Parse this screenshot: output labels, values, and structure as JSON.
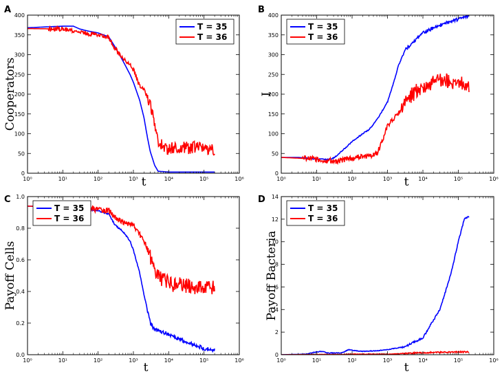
{
  "chart_data": [
    {
      "panel": "A",
      "type": "line",
      "xscale": "log",
      "xlim": [
        1,
        1000000
      ],
      "ylim": [
        0,
        400
      ],
      "xlabel": "t",
      "ylabel": "Cooperators",
      "xticks": [
        "10⁰",
        "10¹",
        "10²",
        "10³",
        "10⁴",
        "10⁵",
        "10⁶"
      ],
      "yticks": [
        "0",
        "50",
        "100",
        "150",
        "200",
        "250",
        "300",
        "350",
        "400"
      ],
      "legend_position": "top-right",
      "series": [
        {
          "name": "T = 35",
          "color": "#0000ff",
          "noise": 0,
          "points": [
            [
              1,
              368
            ],
            [
              3,
              370
            ],
            [
              10,
              372
            ],
            [
              20,
              372
            ],
            [
              30,
              365
            ],
            [
              50,
              360
            ],
            [
              100,
              355
            ],
            [
              200,
              345
            ],
            [
              300,
              320
            ],
            [
              500,
              285
            ],
            [
              800,
              250
            ],
            [
              1000,
              230
            ],
            [
              1500,
              185
            ],
            [
              2000,
              140
            ],
            [
              2500,
              90
            ],
            [
              3000,
              55
            ],
            [
              4000,
              20
            ],
            [
              5000,
              5
            ],
            [
              10000,
              3
            ],
            [
              100000,
              3
            ],
            [
              200000,
              3
            ]
          ]
        },
        {
          "name": "T = 36",
          "color": "#ff0000",
          "noise": 16,
          "points": [
            [
              1,
              366
            ],
            [
              10,
              365
            ],
            [
              30,
              358
            ],
            [
              50,
              353
            ],
            [
              100,
              352
            ],
            [
              150,
              348
            ],
            [
              200,
              342
            ],
            [
              300,
              318
            ],
            [
              500,
              290
            ],
            [
              700,
              280
            ],
            [
              1000,
              262
            ],
            [
              1500,
              220
            ],
            [
              2000,
              210
            ],
            [
              3000,
              180
            ],
            [
              4000,
              120
            ],
            [
              5000,
              85
            ],
            [
              7000,
              65
            ],
            [
              10000,
              62
            ],
            [
              50000,
              65
            ],
            [
              200000,
              62
            ]
          ]
        }
      ]
    },
    {
      "panel": "B",
      "type": "line",
      "xscale": "log",
      "xlim": [
        1,
        1000000
      ],
      "ylim": [
        0,
        400
      ],
      "xlabel": "t",
      "ylabel": "I",
      "xticks": [
        "10⁰",
        "10¹",
        "10²",
        "10³",
        "10⁴",
        "10⁵",
        "10⁶"
      ],
      "yticks": [
        "0",
        "50",
        "100",
        "150",
        "200",
        "250",
        "300",
        "350",
        "400"
      ],
      "legend_position": "top-left",
      "series": [
        {
          "name": "T = 35",
          "color": "#0000ff",
          "noise": 4,
          "points": [
            [
              1,
              40
            ],
            [
              3,
              40
            ],
            [
              10,
              36
            ],
            [
              20,
              35
            ],
            [
              30,
              38
            ],
            [
              50,
              55
            ],
            [
              100,
              80
            ],
            [
              200,
              100
            ],
            [
              300,
              110
            ],
            [
              500,
              135
            ],
            [
              1000,
              180
            ],
            [
              1500,
              230
            ],
            [
              2000,
              270
            ],
            [
              3000,
              310
            ],
            [
              5000,
              330
            ],
            [
              10000,
              355
            ],
            [
              30000,
              375
            ],
            [
              100000,
              390
            ],
            [
              200000,
              398
            ]
          ]
        },
        {
          "name": "T = 36",
          "color": "#ff0000",
          "noise": 20,
          "points": [
            [
              1,
              40
            ],
            [
              10,
              36
            ],
            [
              30,
              30
            ],
            [
              50,
              33
            ],
            [
              100,
              38
            ],
            [
              200,
              42
            ],
            [
              500,
              48
            ],
            [
              700,
              80
            ],
            [
              1000,
              120
            ],
            [
              2000,
              150
            ],
            [
              3000,
              175
            ],
            [
              5000,
              200
            ],
            [
              10000,
              220
            ],
            [
              30000,
              235
            ],
            [
              100000,
              230
            ],
            [
              200000,
              225
            ]
          ]
        }
      ]
    },
    {
      "panel": "C",
      "type": "line",
      "xscale": "log",
      "xlim": [
        1,
        1000000
      ],
      "ylim": [
        0,
        1.0
      ],
      "xlabel": "t",
      "ylabel": "Payoff Cells",
      "xticks": [
        "10⁰",
        "10¹",
        "10²",
        "10³",
        "10⁴",
        "10⁵",
        "10⁶"
      ],
      "yticks": [
        "0.0",
        "0.2",
        "0.4",
        "0.6",
        "0.8",
        "1.0"
      ],
      "legend_position": "top-left",
      "series": [
        {
          "name": "T = 35",
          "color": "#0000ff",
          "noise": 0.012,
          "points": [
            [
              1,
              0.94
            ],
            [
              10,
              0.93
            ],
            [
              30,
              0.93
            ],
            [
              50,
              0.92
            ],
            [
              100,
              0.91
            ],
            [
              200,
              0.89
            ],
            [
              300,
              0.82
            ],
            [
              500,
              0.78
            ],
            [
              800,
              0.72
            ],
            [
              1000,
              0.66
            ],
            [
              1500,
              0.52
            ],
            [
              2000,
              0.38
            ],
            [
              2500,
              0.28
            ],
            [
              3000,
              0.2
            ],
            [
              4000,
              0.16
            ],
            [
              10000,
              0.13
            ],
            [
              30000,
              0.08
            ],
            [
              100000,
              0.04
            ],
            [
              200000,
              0.03
            ]
          ]
        },
        {
          "name": "T = 36",
          "color": "#ff0000",
          "noise": 0.05,
          "points": [
            [
              1,
              0.94
            ],
            [
              10,
              0.93
            ],
            [
              50,
              0.92
            ],
            [
              100,
              0.92
            ],
            [
              200,
              0.91
            ],
            [
              300,
              0.87
            ],
            [
              500,
              0.84
            ],
            [
              1000,
              0.82
            ],
            [
              2000,
              0.72
            ],
            [
              3000,
              0.62
            ],
            [
              5000,
              0.5
            ],
            [
              10000,
              0.45
            ],
            [
              50000,
              0.43
            ],
            [
              200000,
              0.42
            ]
          ]
        }
      ]
    },
    {
      "panel": "D",
      "type": "line",
      "xscale": "log",
      "xlim": [
        1,
        1000000
      ],
      "ylim": [
        0,
        14
      ],
      "xlabel": "t",
      "ylabel": "Payoff Bacteria",
      "xticks": [
        "10⁰",
        "10¹",
        "10²",
        "10³",
        "10⁴",
        "10⁵",
        "10⁶"
      ],
      "yticks": [
        "0",
        "2",
        "4",
        "6",
        "8",
        "10",
        "12",
        "14"
      ],
      "legend_position": "top-left",
      "series": [
        {
          "name": "T = 35",
          "color": "#0000ff",
          "noise": 0.08,
          "points": [
            [
              1,
              0
            ],
            [
              5,
              0.05
            ],
            [
              10,
              0.25
            ],
            [
              15,
              0.3
            ],
            [
              20,
              0.15
            ],
            [
              50,
              0.15
            ],
            [
              80,
              0.45
            ],
            [
              120,
              0.35
            ],
            [
              200,
              0.3
            ],
            [
              500,
              0.35
            ],
            [
              1000,
              0.45
            ],
            [
              3000,
              0.7
            ],
            [
              10000,
              1.5
            ],
            [
              30000,
              4
            ],
            [
              60000,
              7
            ],
            [
              100000,
              10
            ],
            [
              150000,
              12.1
            ],
            [
              200000,
              12.2
            ]
          ]
        },
        {
          "name": "T = 36",
          "color": "#ff0000",
          "noise": 0.06,
          "points": [
            [
              1,
              0
            ],
            [
              10,
              0.02
            ],
            [
              50,
              0.02
            ],
            [
              100,
              0.05
            ],
            [
              500,
              0.05
            ],
            [
              1000,
              0.05
            ],
            [
              3000,
              0.1
            ],
            [
              10000,
              0.18
            ],
            [
              50000,
              0.22
            ],
            [
              200000,
              0.25
            ]
          ]
        }
      ]
    }
  ]
}
